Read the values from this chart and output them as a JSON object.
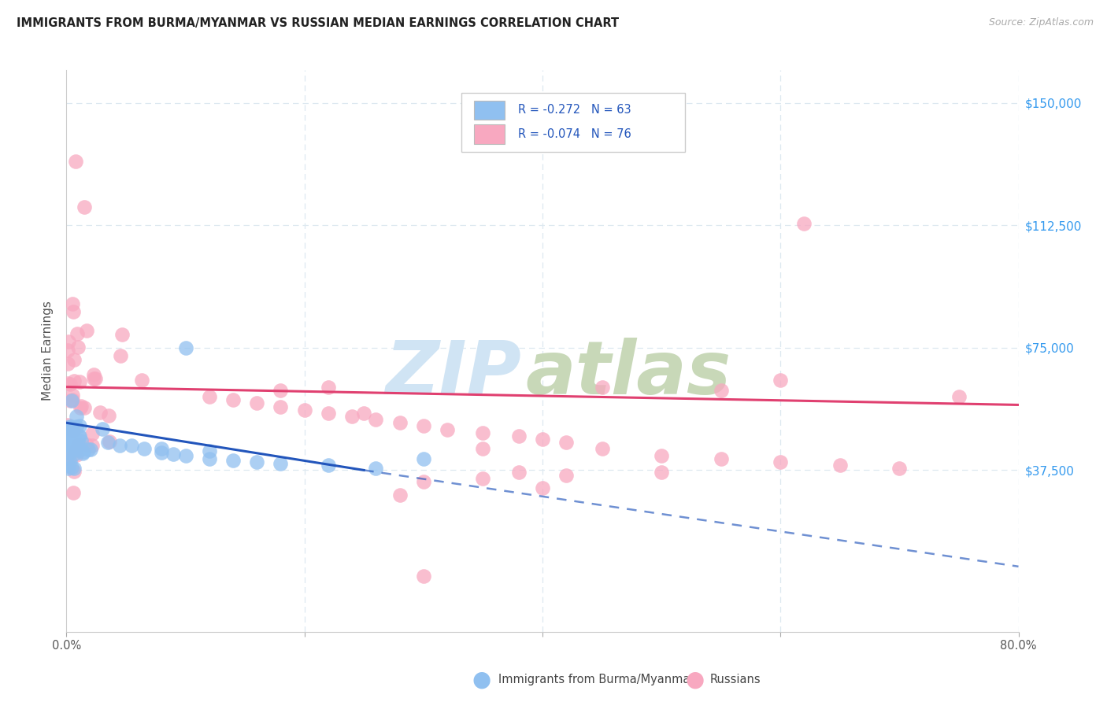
{
  "title": "IMMIGRANTS FROM BURMA/MYANMAR VS RUSSIAN MEDIAN EARNINGS CORRELATION CHART",
  "source": "Source: ZipAtlas.com",
  "ylabel": "Median Earnings",
  "y_ticks": [
    0,
    37500,
    75000,
    112500,
    150000
  ],
  "y_tick_labels": [
    "",
    "$37,500",
    "$75,000",
    "$112,500",
    "$150,000"
  ],
  "xmin": 0.0,
  "xmax": 0.8,
  "ymin": -12000,
  "ymax": 160000,
  "blue_R": -0.272,
  "blue_N": 63,
  "pink_R": -0.074,
  "pink_N": 76,
  "blue_color": "#90c0f0",
  "pink_color": "#f8a8c0",
  "blue_line_color": "#2255bb",
  "pink_line_color": "#e04070",
  "legend_label_blue": "Immigrants from Burma/Myanmar",
  "legend_label_pink": "Russians",
  "blue_line": [
    0.0,
    52000,
    0.25,
    37500
  ],
  "pink_line": [
    0.0,
    63000,
    0.8,
    57500
  ],
  "blue_dash": [
    0.25,
    37500,
    0.8,
    8000
  ],
  "grid_color": "#dde8f0",
  "background_color": "#ffffff",
  "x_tick_positions": [
    0.0,
    0.2,
    0.4,
    0.6,
    0.8
  ],
  "watermark_zip_color": "#d0e4f4",
  "watermark_atlas_color": "#c8d8b8"
}
